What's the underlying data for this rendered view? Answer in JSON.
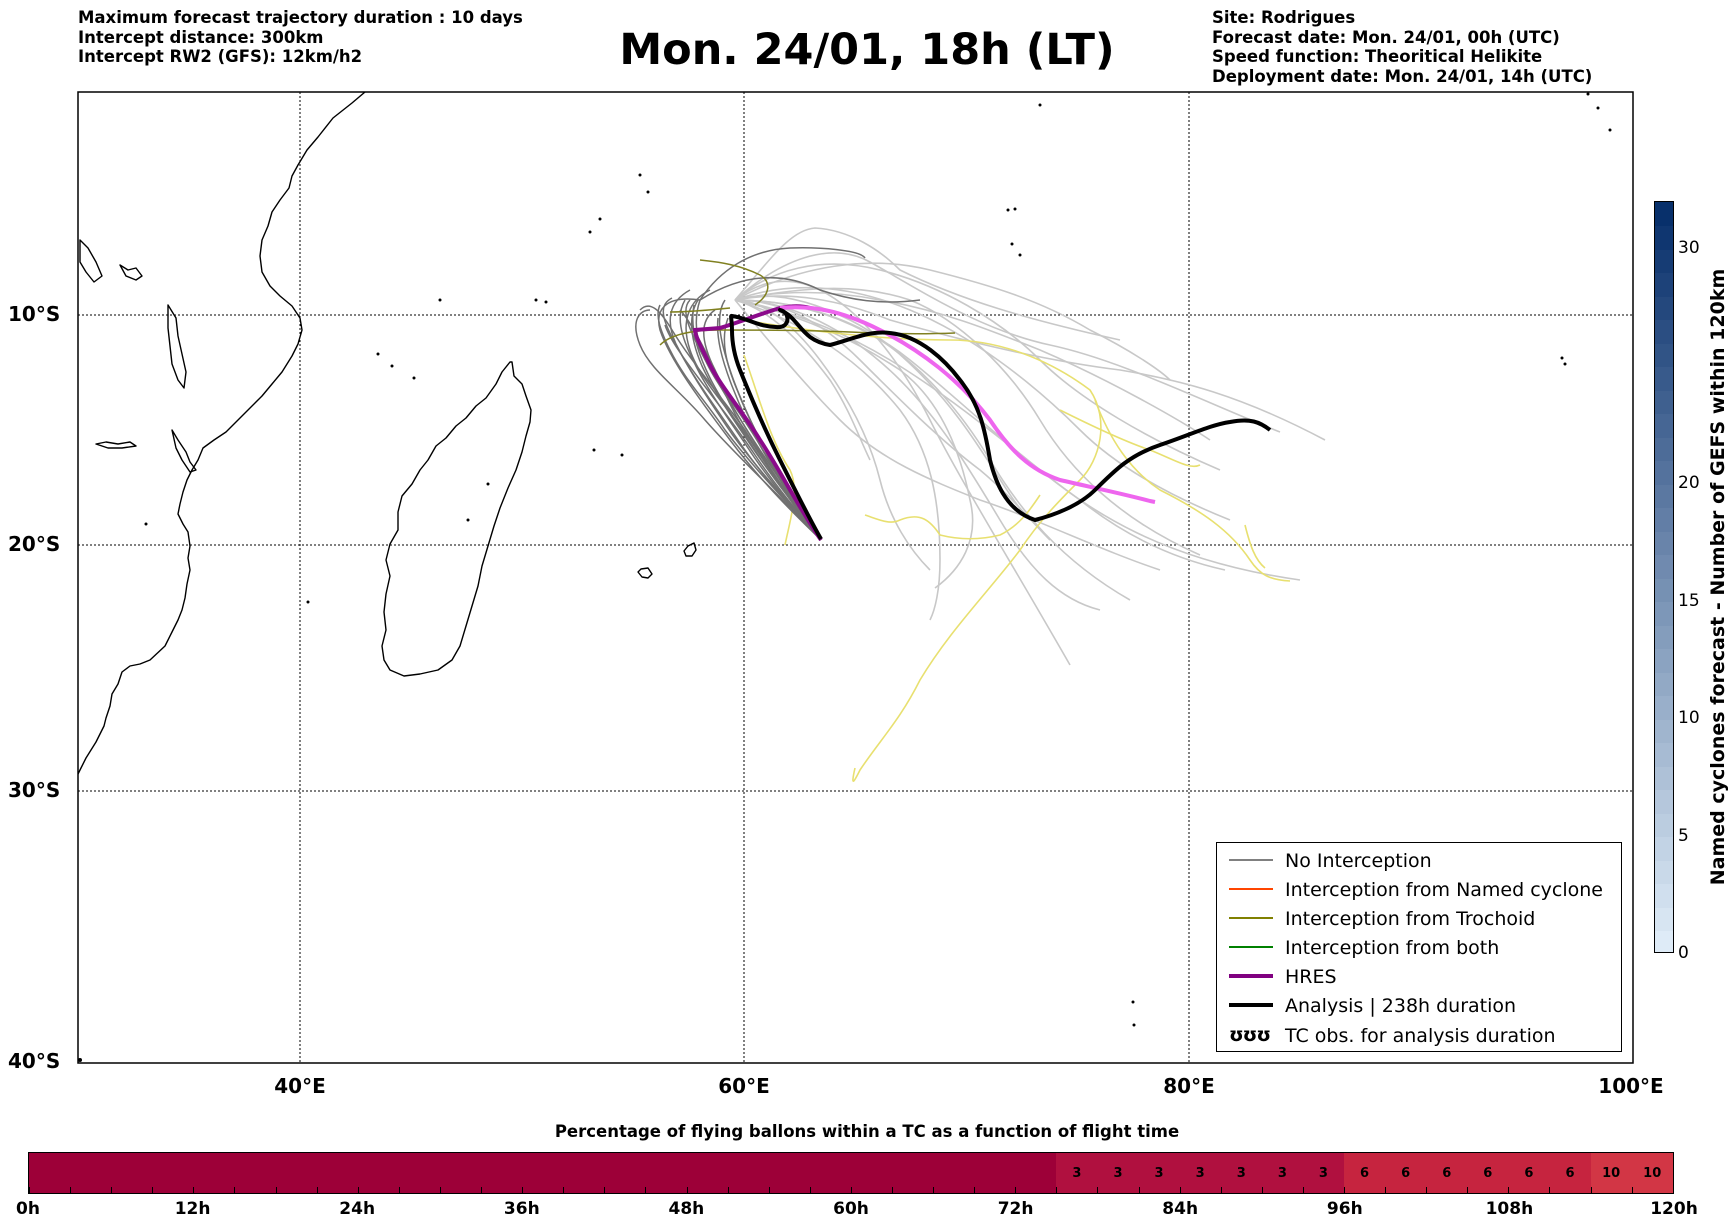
{
  "header": {
    "left_lines": [
      "Maximum forecast trajectory duration : 10 days",
      "Intercept distance: 300km",
      "Intercept RW2 (GFS):  12km/h2"
    ],
    "title": "Mon. 24/01, 18h (LT)",
    "right_lines": [
      "Site: Rodrigues",
      "Forecast date: Mon. 24/01, 00h (UTC)",
      "Speed function: Theoritical Helikite",
      "Deployment date: Mon. 24/01, 14h (UTC)"
    ]
  },
  "map": {
    "lat_labels": [
      "10°S",
      "20°S",
      "30°S",
      "40°S"
    ],
    "lon_labels": [
      "40°E",
      "60°E",
      "80°E",
      "100°E"
    ],
    "colors": {
      "no_interception_dark": "#707070",
      "no_interception_light": "#c8c8c8",
      "trochoid": "#808020",
      "yellow": "#e8e070",
      "hres": "#8b0a8b",
      "hres_light": "#ee66ee",
      "analysis": "#000000",
      "coast": "#000000"
    }
  },
  "legend": {
    "items": [
      {
        "label": "No Interception",
        "color": "#808080",
        "width": 1.4,
        "icon": "line"
      },
      {
        "label": "Interception from Named cyclone",
        "color": "#ff4500",
        "width": 1.4,
        "icon": "line"
      },
      {
        "label": "Interception from Trochoid",
        "color": "#808000",
        "width": 1.4,
        "icon": "line"
      },
      {
        "label": "Interception from both",
        "color": "#008000",
        "width": 1.4,
        "icon": "line"
      },
      {
        "label": "HRES",
        "color": "#800080",
        "width": 4,
        "icon": "line"
      },
      {
        "label": "Analysis | 238h duration",
        "color": "#000000",
        "width": 4,
        "icon": "line"
      },
      {
        "label": "TC obs. for analysis duration",
        "color": "#000000",
        "icon": "cyclone-symbols",
        "symbol_text": "ʊʊʊ"
      }
    ]
  },
  "colorbar": {
    "title": "Named cyclones forecast - Number of GEFS within 120km",
    "ticks": [
      "0",
      "5",
      "10",
      "15",
      "20",
      "30"
    ],
    "tick_values": [
      0,
      5,
      10,
      15,
      20,
      30
    ],
    "max": 32
  },
  "percentage": {
    "title": "Percentage of flying ballons within a TC as a function of flight time",
    "time_labels": [
      "0h",
      "12h",
      "24h",
      "36h",
      "48h",
      "60h",
      "72h",
      "84h",
      "96h",
      "108h",
      "120h"
    ],
    "cells": [
      "",
      "",
      "",
      "",
      "",
      "",
      "",
      "",
      "",
      "",
      "",
      "",
      "",
      "",
      "",
      "",
      "",
      "",
      "",
      "",
      "",
      "",
      "",
      "",
      "",
      "3",
      "3",
      "3",
      "3",
      "3",
      "3",
      "3",
      "6",
      "6",
      "6",
      "6",
      "6",
      "6",
      "10",
      "10"
    ],
    "colors": {
      "0": "#9d0038",
      "3": "#b0103f",
      "6": "#c6243f",
      "10": "#d23645"
    }
  }
}
